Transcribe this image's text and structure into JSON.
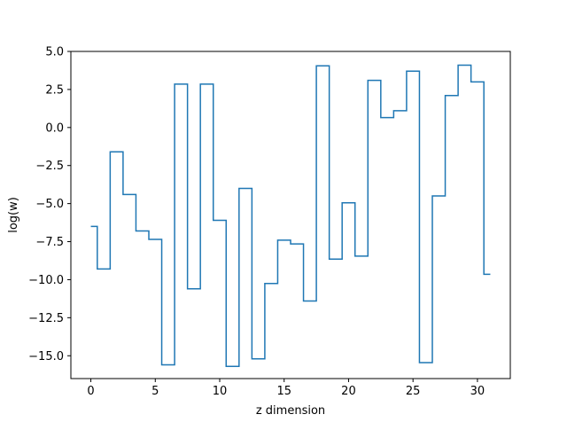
{
  "chart_data": {
    "type": "line",
    "drawstyle": "steps-mid",
    "title": "",
    "xlabel": "z dimension",
    "ylabel": "log(w)",
    "xlim": [
      -1.55,
      32.55
    ],
    "ylim": [
      -16.5,
      5.0
    ],
    "xticks": [
      0,
      5,
      10,
      15,
      20,
      25,
      30
    ],
    "xtick_labels": [
      "0",
      "5",
      "10",
      "15",
      "20",
      "25",
      "30"
    ],
    "yticks": [
      5.0,
      2.5,
      0.0,
      -2.5,
      -5.0,
      -7.5,
      -10.0,
      -12.5,
      -15.0
    ],
    "ytick_labels": [
      "5.0",
      "2.5",
      "0.0",
      "−2.5",
      "−5.0",
      "−7.5",
      "−10.0",
      "−12.5",
      "−15.0"
    ],
    "grid": false,
    "line_color": "#1f77b4",
    "series": [
      {
        "x": [
          0,
          1,
          2,
          3,
          4,
          5,
          6,
          7,
          8,
          9,
          10,
          11,
          12,
          13,
          14,
          15,
          16,
          17,
          18,
          19,
          20,
          21,
          22,
          23,
          24,
          25,
          26,
          27,
          28,
          29,
          30,
          31
        ],
        "values": [
          -6.5,
          -9.3,
          -1.6,
          -4.4,
          -6.8,
          -7.35,
          -15.6,
          2.85,
          -10.6,
          2.85,
          -6.1,
          -15.7,
          -4.0,
          -15.2,
          -10.25,
          -7.4,
          -7.65,
          -11.4,
          4.05,
          -8.65,
          -4.95,
          -8.45,
          3.1,
          0.65,
          1.1,
          3.7,
          -15.45,
          -4.5,
          2.1,
          4.1,
          3.0,
          -9.65
        ]
      }
    ]
  }
}
